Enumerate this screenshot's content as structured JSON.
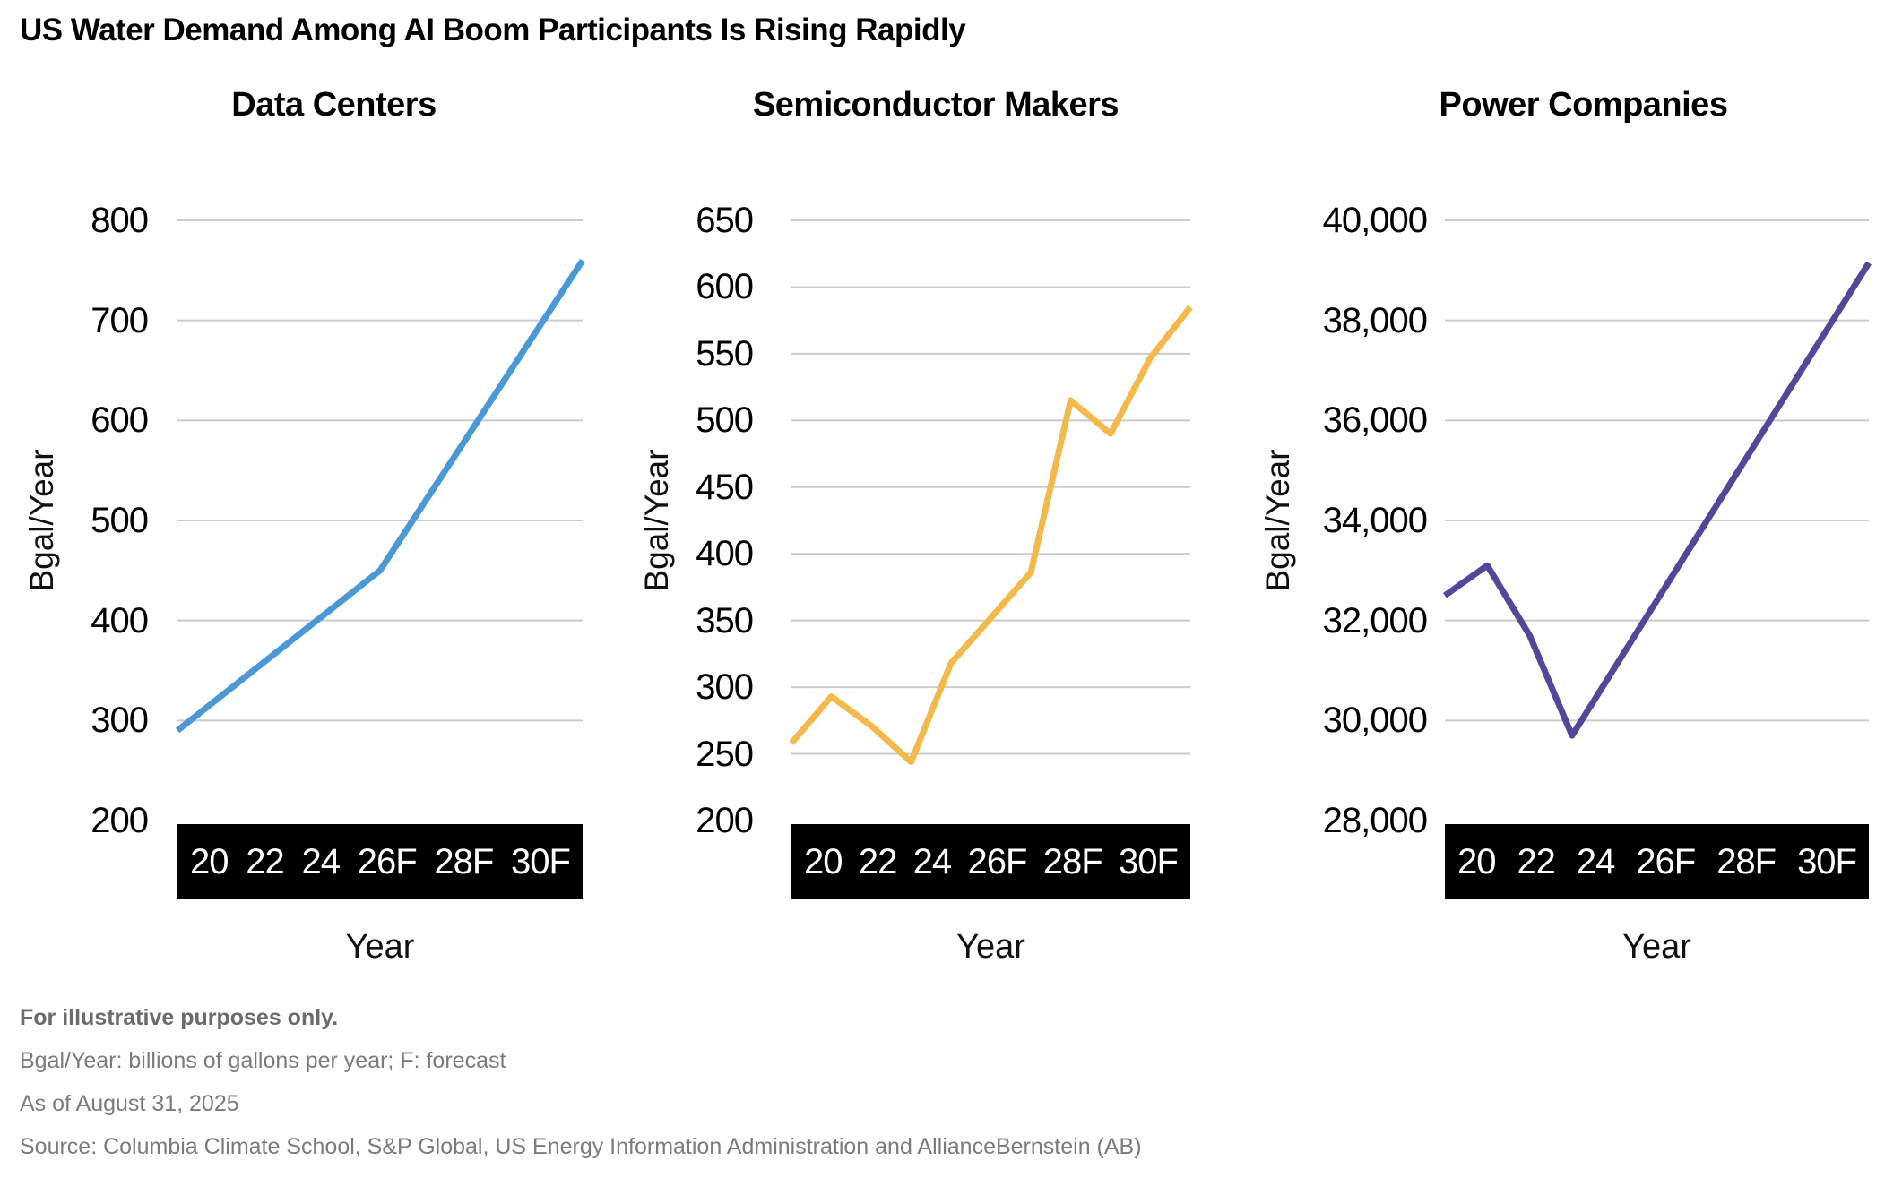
{
  "title": "US Water Demand Among AI Boom Participants Is Rising Rapidly",
  "chart_data": [
    {
      "type": "line",
      "title": "Data Centers",
      "ylabel": "Bgal/Year",
      "xlabel": "Year",
      "color": "#4A99D6",
      "ylim": [
        200,
        800
      ],
      "yticks": [
        "800",
        "700",
        "600",
        "500",
        "400",
        "300",
        "200"
      ],
      "xticks": [
        "20",
        "22",
        "24",
        "26F",
        "28F",
        "30F"
      ],
      "years": [
        "20",
        "21",
        "22",
        "23",
        "24",
        "25",
        "26F",
        "27F",
        "28F",
        "29F",
        "30F"
      ],
      "values": [
        290,
        322,
        354,
        386,
        418,
        450,
        512,
        574,
        636,
        698,
        760
      ],
      "grid": true,
      "legend": "none"
    },
    {
      "type": "line",
      "title": "Semiconductor Makers",
      "ylabel": "Bgal/Year",
      "xlabel": "Year",
      "color": "#F4B94A",
      "ylim": [
        200,
        650
      ],
      "yticks": [
        "650",
        "600",
        "550",
        "500",
        "450",
        "400",
        "350",
        "300",
        "250",
        "200"
      ],
      "xticks": [
        "20",
        "22",
        "24",
        "26F",
        "28F",
        "30F"
      ],
      "years": [
        "20",
        "21",
        "22",
        "23",
        "24",
        "25",
        "26F",
        "27F",
        "28F",
        "29F",
        "30F"
      ],
      "values": [
        258,
        293,
        271,
        244,
        318,
        352,
        386,
        515,
        490,
        547,
        585
      ],
      "grid": true,
      "legend": "none"
    },
    {
      "type": "line",
      "title": "Power Companies",
      "ylabel": "Bgal/Year",
      "xlabel": "Year",
      "color": "#55469B",
      "ylim": [
        28000,
        40000
      ],
      "yticks": [
        "40,000",
        "38,000",
        "36,000",
        "34,000",
        "32,000",
        "30,000",
        "28,000"
      ],
      "xticks": [
        "20",
        "22",
        "24",
        "26F",
        "28F",
        "30F"
      ],
      "years": [
        "20",
        "21",
        "22",
        "23",
        "24",
        "25",
        "26F",
        "27F",
        "28F",
        "29F",
        "30F"
      ],
      "values": [
        32500,
        33100,
        31700,
        29700,
        31050,
        32400,
        33750,
        35100,
        36450,
        37800,
        39150
      ],
      "grid": true,
      "legend": "none"
    }
  ],
  "style": {
    "gridline_color": "#CBCBCB",
    "axis_box_background": "#000000",
    "axis_box_text": "#FFFFFF"
  },
  "footer": {
    "disclaimer": "For illustrative purposes only.",
    "definition": "Bgal/Year: billions of gallons per year; F: forecast",
    "as_of": "As of August 31, 2025",
    "source": "Source: Columbia Climate School, S&P Global, US Energy Information Administration and AllianceBernstein (AB)"
  }
}
